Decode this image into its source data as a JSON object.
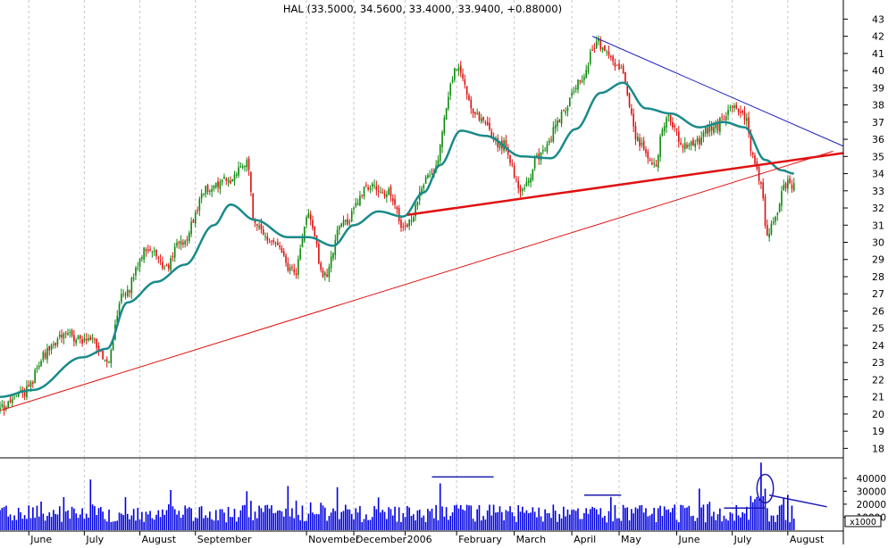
{
  "chart_data": {
    "type": "candlestick",
    "title": "HAL (33.5000, 34.5600, 33.4000, 33.9400, +0.88000)",
    "price_axis": {
      "ticks": [
        18,
        19,
        20,
        21,
        22,
        23,
        24,
        25,
        26,
        27,
        28,
        29,
        30,
        31,
        32,
        33,
        34,
        35,
        36,
        37,
        38,
        39,
        40,
        41,
        42,
        43
      ],
      "ylim": [
        17.5,
        43.8
      ],
      "side": "right"
    },
    "volume_axis": {
      "ticks": [
        "10000",
        "20000",
        "30000",
        "40000"
      ],
      "unit_label": "x1000",
      "ylim": [
        0,
        55000
      ]
    },
    "x_labels": [
      {
        "day": 14,
        "text": "June"
      },
      {
        "day": 41,
        "text": "July"
      },
      {
        "day": 68,
        "text": "August"
      },
      {
        "day": 95,
        "text": "September"
      },
      {
        "day": 149,
        "text": "November"
      },
      {
        "day": 172,
        "text": "December"
      },
      {
        "day": 197,
        "text": "2006"
      },
      {
        "day": 222,
        "text": "February"
      },
      {
        "day": 250,
        "text": "March"
      },
      {
        "day": 278,
        "text": "April"
      },
      {
        "day": 301,
        "text": "May"
      },
      {
        "day": 329,
        "text": "June"
      },
      {
        "day": 356,
        "text": "July"
      },
      {
        "day": 383,
        "text": "August"
      }
    ],
    "total_days": 410,
    "price_anchors": [
      [
        0,
        20.3
      ],
      [
        12,
        21.4
      ],
      [
        24,
        23.8
      ],
      [
        30,
        24.5
      ],
      [
        44,
        24.3
      ],
      [
        52,
        23.2
      ],
      [
        60,
        27.0
      ],
      [
        72,
        29.7
      ],
      [
        80,
        28.5
      ],
      [
        88,
        30.0
      ],
      [
        102,
        33.2
      ],
      [
        110,
        33.6
      ],
      [
        120,
        34.7
      ],
      [
        124,
        31.0
      ],
      [
        132,
        30.0
      ],
      [
        143,
        28.3
      ],
      [
        150,
        31.5
      ],
      [
        158,
        28.0
      ],
      [
        166,
        31.0
      ],
      [
        180,
        33.3
      ],
      [
        190,
        32.8
      ],
      [
        196,
        30.8
      ],
      [
        210,
        34.0
      ],
      [
        222,
        40.2
      ],
      [
        232,
        37.3
      ],
      [
        244,
        35.8
      ],
      [
        254,
        33.0
      ],
      [
        262,
        35.0
      ],
      [
        274,
        37.5
      ],
      [
        282,
        39.5
      ],
      [
        290,
        41.5
      ],
      [
        302,
        40.0
      ],
      [
        310,
        36.0
      ],
      [
        318,
        34.5
      ],
      [
        324,
        37.3
      ],
      [
        334,
        35.5
      ],
      [
        346,
        36.5
      ],
      [
        356,
        37.8
      ],
      [
        362,
        37.5
      ],
      [
        366,
        35.0
      ],
      [
        370,
        33.2
      ],
      [
        373,
        30.5
      ],
      [
        377,
        31.5
      ],
      [
        382,
        33.5
      ],
      [
        386,
        33.4
      ]
    ],
    "moving_average": [
      [
        0,
        21.0
      ],
      [
        16,
        21.4
      ],
      [
        40,
        23.3
      ],
      [
        52,
        23.8
      ],
      [
        62,
        26.5
      ],
      [
        76,
        27.7
      ],
      [
        90,
        28.7
      ],
      [
        104,
        31.0
      ],
      [
        112,
        32.2
      ],
      [
        124,
        31.3
      ],
      [
        140,
        30.3
      ],
      [
        150,
        30.3
      ],
      [
        162,
        29.8
      ],
      [
        172,
        31.0
      ],
      [
        184,
        31.8
      ],
      [
        196,
        31.5
      ],
      [
        206,
        32.9
      ],
      [
        214,
        34.5
      ],
      [
        224,
        36.5
      ],
      [
        236,
        36.2
      ],
      [
        254,
        35.0
      ],
      [
        268,
        34.9
      ],
      [
        280,
        36.6
      ],
      [
        292,
        38.7
      ],
      [
        303,
        39.3
      ],
      [
        314,
        37.8
      ],
      [
        326,
        37.5
      ],
      [
        340,
        36.7
      ],
      [
        352,
        37.0
      ],
      [
        362,
        36.7
      ],
      [
        372,
        34.8
      ],
      [
        380,
        34.2
      ],
      [
        386,
        34.0
      ]
    ],
    "trendlines": [
      {
        "from": [
          0,
          20.2
        ],
        "to": [
          405,
          35.3
        ],
        "thickness": "thin",
        "color": "#e01010"
      },
      {
        "from": [
          198,
          31.6
        ],
        "to": [
          410,
          35.2
        ],
        "thickness": "thick",
        "color": "#e01010"
      },
      {
        "from": [
          288,
          42.0
        ],
        "to": [
          410,
          35.6
        ],
        "thickness": "thin",
        "color": "#2020c0"
      }
    ],
    "volume_annotations": [
      {
        "type": "hline",
        "from_day": 210,
        "to_day": 240,
        "value": 41000
      },
      {
        "type": "hline",
        "from_day": 284,
        "to_day": 302,
        "value": 27000
      },
      {
        "type": "hline",
        "from_day": 352,
        "to_day": 372,
        "value": 17000
      },
      {
        "type": "segment",
        "from": [
          374,
          27000
        ],
        "to": [
          402,
          18000
        ]
      },
      {
        "type": "ellipse",
        "center_day": 372,
        "value": 32000,
        "span_days": 8,
        "span_value": 22000
      }
    ],
    "colors": {
      "up": "#0c8a0c",
      "down": "#e01010",
      "ma": "#1a8a8a",
      "volume": "#0000e0",
      "grid": "#c8c8c8",
      "annotation": "#1a1ab0"
    },
    "grid": true
  }
}
